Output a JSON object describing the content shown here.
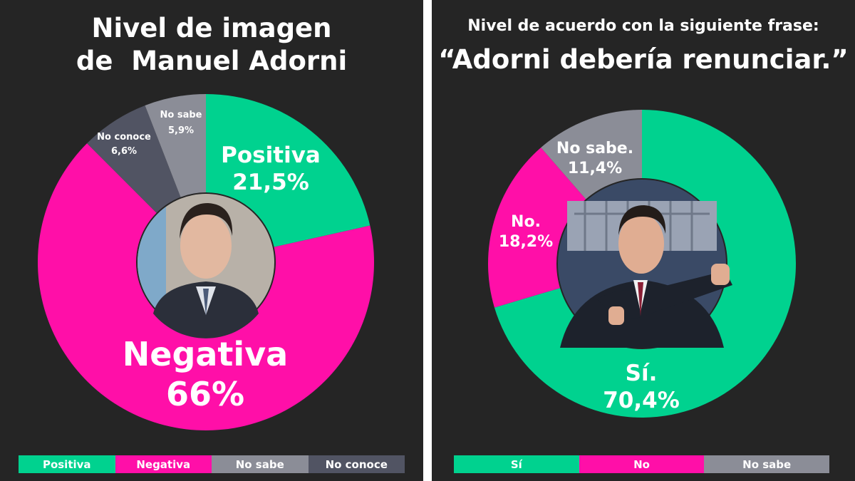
{
  "colors": {
    "positive": "#00d28f",
    "negative": "#ff0fa8",
    "no_sabe": "#8b8d97",
    "no_conoce": "#515463",
    "background": "#252525"
  },
  "chart_data": [
    {
      "type": "pie",
      "variant": "donut",
      "title": "Nivel de imagen de Manuel Adorni",
      "title_lines": [
        "Nivel de imagen",
        "de  Manuel Adorni"
      ],
      "slices": [
        {
          "name": "Positiva",
          "label": "Positiva",
          "value": 21.5,
          "value_label": "21,5%",
          "color": "#00d28f"
        },
        {
          "name": "Negativa",
          "label": "Negativa",
          "value": 66,
          "value_label": "66%",
          "color": "#ff0fa8"
        },
        {
          "name": "No conoce",
          "label": "No conoce",
          "value": 6.6,
          "value_label": "6,6%",
          "color": "#515463"
        },
        {
          "name": "No sabe",
          "label": "No sabe",
          "value": 5.9,
          "value_label": "5,9%",
          "color": "#8b8d97"
        }
      ],
      "legend": [
        "Positiva",
        "Negativa",
        "No sabe",
        "No conoce"
      ],
      "legend_colors": [
        "#00d28f",
        "#ff0fa8",
        "#8b8d97",
        "#515463"
      ],
      "legend_position": "bottom",
      "start": "top",
      "direction": "clockwise"
    },
    {
      "type": "pie",
      "variant": "donut",
      "title": "Nivel de acuerdo con la siguiente frase: “Adorni debería renunciar.”",
      "title_lines": [
        "Nivel de acuerdo con la siguiente frase:",
        "“Adorni debería renunciar.”"
      ],
      "slices": [
        {
          "name": "Sí",
          "label": "Sí.",
          "value": 70.4,
          "value_label": "70,4%",
          "color": "#00d28f"
        },
        {
          "name": "No",
          "label": "No.",
          "value": 18.2,
          "value_label": "18,2%",
          "color": "#ff0fa8"
        },
        {
          "name": "No sabe",
          "label": "No sabe.",
          "value": 11.4,
          "value_label": "11,4%",
          "color": "#8b8d97"
        }
      ],
      "legend": [
        "Sí",
        "No",
        "No sabe"
      ],
      "legend_colors": [
        "#00d28f",
        "#ff0fa8",
        "#8b8d97"
      ],
      "legend_position": "bottom",
      "start": "top",
      "direction": "clockwise"
    }
  ]
}
